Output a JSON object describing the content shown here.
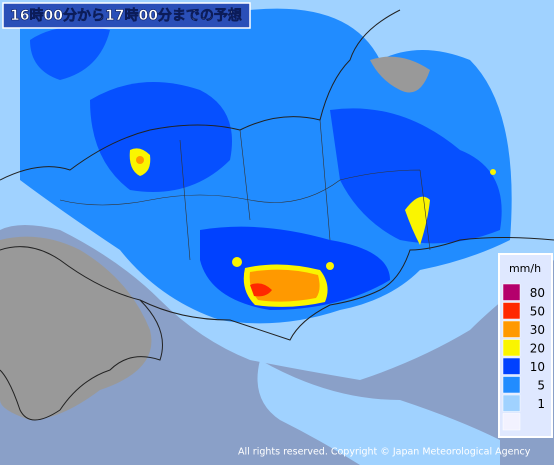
{
  "header": {
    "title": "16時00分から17時00分までの予想"
  },
  "legend": {
    "unit": "mm/h",
    "items": [
      {
        "label": "80",
        "color": "#b4006c"
      },
      {
        "label": "50",
        "color": "#ff2800"
      },
      {
        "label": "30",
        "color": "#ff9900"
      },
      {
        "label": "20",
        "color": "#faf500"
      },
      {
        "label": "10",
        "color": "#0041ff"
      },
      {
        "label": "5",
        "color": "#218cff"
      },
      {
        "label": "1",
        "color": "#a0d2ff"
      },
      {
        "label": null,
        "color": "#f2f2ff"
      }
    ]
  },
  "footer": {
    "copyright": "All rights reserved. Copyright © Japan Meteorological Agency"
  }
}
